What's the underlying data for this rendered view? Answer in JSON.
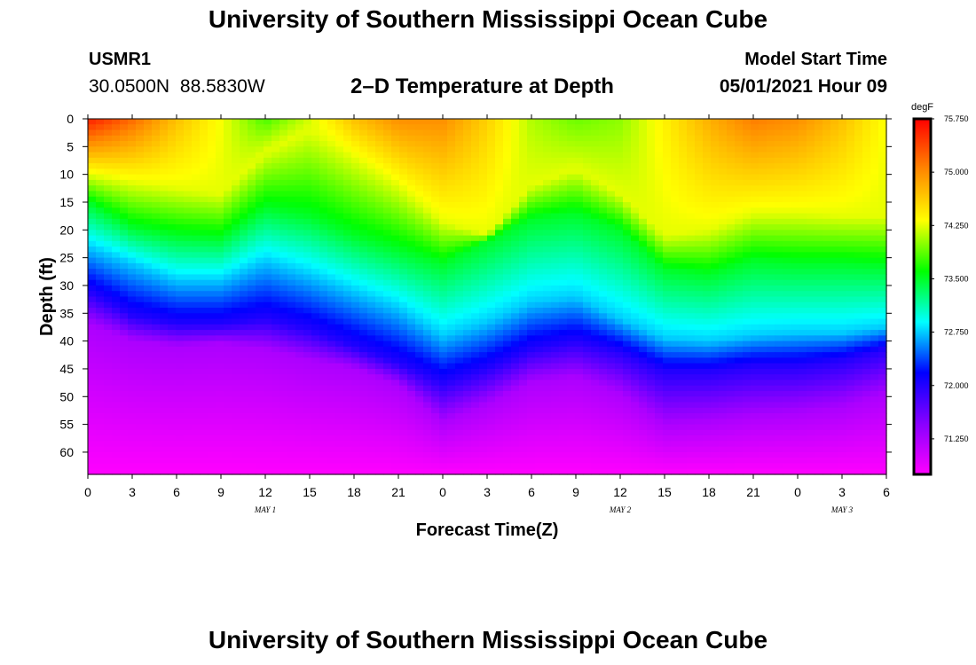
{
  "header": {
    "title": "University of Southern Mississippi Ocean Cube",
    "station": "USMR1",
    "coordinates": "30.0500N 88.5830W",
    "plot_title": "2–D Temperature at Depth",
    "model_start_label": "Model Start Time",
    "model_start_value": "05/01/2021 Hour 09"
  },
  "footer": {
    "title": "University of Southern Mississippi Ocean Cube"
  },
  "chart_data": {
    "type": "heatmap",
    "title": "2–D Temperature at Depth",
    "xlabel": "Forecast Time(Z)",
    "ylabel": "Depth (ft)",
    "x_ticks": [
      "0",
      "3",
      "6",
      "9",
      "12",
      "15",
      "18",
      "21",
      "0",
      "3",
      "6",
      "9",
      "12",
      "15",
      "18",
      "21",
      "0",
      "3",
      "6"
    ],
    "x_range_hours": [
      0,
      54
    ],
    "date_labels": [
      {
        "label": "MAY 1",
        "hour": 12
      },
      {
        "label": "MAY 2",
        "hour": 36
      },
      {
        "label": "MAY 3",
        "hour": 51
      }
    ],
    "y_ticks": [
      0,
      5,
      10,
      15,
      20,
      25,
      30,
      35,
      40,
      45,
      50,
      55,
      60
    ],
    "y_range_ft": [
      0,
      64
    ],
    "colorbar": {
      "unit": "degF",
      "min": 70.75,
      "max": 75.75,
      "labels": [
        "75.750",
        "75.000",
        "74.250",
        "73.500",
        "72.750",
        "72.000",
        "71.250"
      ],
      "colors": [
        "#ff00ff",
        "#8800ff",
        "#0000ff",
        "#00ffff",
        "#00ff00",
        "#ffff00",
        "#ff8800",
        "#ff0000"
      ]
    },
    "surface_temp_degF": [
      75.6,
      75.2,
      74.7,
      74.3,
      73.8,
      74.2,
      74.7,
      75.0,
      75.0,
      74.6,
      74.1,
      73.9,
      74.0,
      74.4,
      74.8,
      75.1,
      75.0,
      74.7,
      74.3
    ],
    "isotherm_depths_ft": [
      {
        "temp": 74.25,
        "depths": [
          10,
          11.5,
          12.5,
          13.5,
          6,
          2,
          7,
          12,
          18.5,
          21,
          12,
          9,
          13.5,
          21,
          20,
          17,
          17,
          17.5,
          17.5
        ]
      },
      {
        "temp": 73.5,
        "depths": [
          15,
          19.5,
          21,
          21.5,
          16,
          17.5,
          21,
          23.5,
          26,
          22,
          18,
          17,
          20,
          27,
          28,
          25.5,
          26,
          26,
          26.5
        ]
      },
      {
        "temp": 72.75,
        "depths": [
          23,
          26,
          29,
          29,
          25.5,
          28,
          31,
          34,
          39,
          36.5,
          33,
          32,
          36,
          39.5,
          40,
          39,
          38.5,
          38.5,
          37.5
        ]
      },
      {
        "temp": 72.0,
        "depths": [
          31,
          35.5,
          37,
          37,
          36,
          38,
          41,
          44,
          47.5,
          45,
          41.5,
          40,
          42,
          45.5,
          45.5,
          44.5,
          44.5,
          43.5,
          41.5
        ]
      },
      {
        "temp": 71.25,
        "depths": [
          37,
          40,
          41,
          40.5,
          41.5,
          43.5,
          45,
          48,
          54.5,
          51.5,
          47.5,
          46.5,
          49.5,
          55,
          54.5,
          53.5,
          53,
          52,
          49.5
        ]
      }
    ],
    "bottom_temp_degF": 70.75
  }
}
